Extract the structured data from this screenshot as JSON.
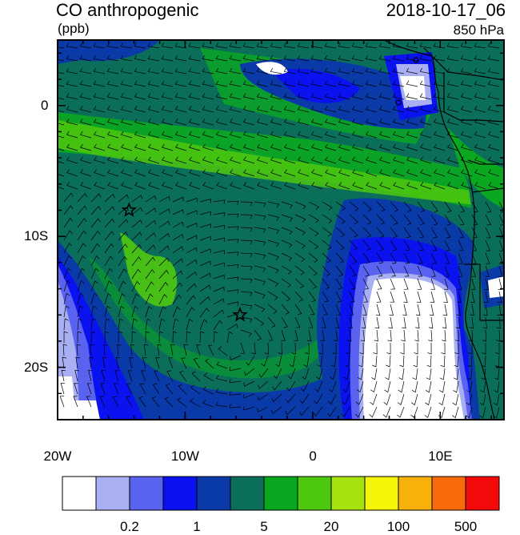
{
  "header": {
    "title": "CO anthropogenic",
    "units": "(ppb)",
    "datetime": "2018-10-17_06",
    "level": "850 hPa"
  },
  "map": {
    "region": "Southeast Atlantic / West Africa",
    "x_ticks": [
      {
        "value": -20,
        "label": "20W"
      },
      {
        "value": -10,
        "label": "10W"
      },
      {
        "value": 0,
        "label": "0"
      },
      {
        "value": 10,
        "label": "10E"
      }
    ],
    "y_ticks": [
      {
        "value": 0,
        "label": "0"
      },
      {
        "value": -10,
        "label": "10S"
      },
      {
        "value": -20,
        "label": "20S"
      }
    ],
    "lon_range": [
      -20,
      15
    ],
    "lat_range": [
      -24,
      5
    ],
    "stations": [
      {
        "name": "station-star-1",
        "lon": -14.4,
        "lat": -8.0
      },
      {
        "name": "station-star-2",
        "lon": -5.7,
        "lat": -16.0
      }
    ]
  },
  "colorbar": {
    "colors": [
      "#ffffff",
      "#a8aff2",
      "#5a63f0",
      "#0a12f0",
      "#0a3aa8",
      "#0b6e5a",
      "#0aa820",
      "#4ec80f",
      "#a6e20e",
      "#f5f50a",
      "#f8b00a",
      "#f86a0a",
      "#f40a0a"
    ],
    "labels": [
      {
        "after_box": 2,
        "text": "0.2"
      },
      {
        "after_box": 4,
        "text": "1"
      },
      {
        "after_box": 6,
        "text": "5"
      },
      {
        "after_box": 8,
        "text": "20"
      },
      {
        "after_box": 10,
        "text": "100"
      },
      {
        "after_box": 12,
        "text": "500"
      }
    ]
  }
}
